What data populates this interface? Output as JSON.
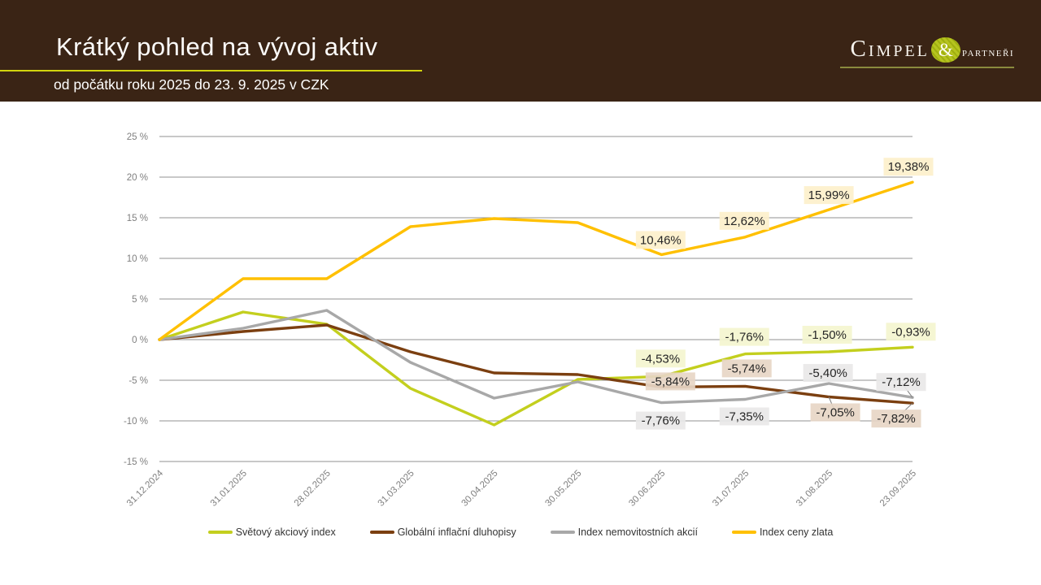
{
  "header": {
    "title": "Krátký pohled na vývoj aktiv",
    "subtitle": "od počátku roku 2025 do 23. 9. 2025 v CZK",
    "background_color": "#3A2415",
    "title_underline_color": "#D2D40E",
    "logo": {
      "name": "Cimpel",
      "ampersand": "&",
      "suffix": "partneři"
    }
  },
  "chart_data": {
    "type": "line",
    "title": "",
    "xlabel": "",
    "ylabel": "",
    "ylim": [
      -15,
      25
    ],
    "grid": "horizontal",
    "legend_position": "bottom",
    "grid_color": "#909090",
    "axis_text_color": "#7F7F7F",
    "label_text_color": "#262626",
    "label_start_index": 6,
    "categories": [
      "31.12.2024",
      "31.01.2025",
      "28.02.2025",
      "31.03.2025",
      "30.04.2025",
      "30.05.2025",
      "30.06.2025",
      "31.07.2025",
      "31.08.2025",
      "23.09.2025"
    ],
    "y_ticks": [
      "25 %",
      "20 %",
      "15 %",
      "10 %",
      "5 %",
      "0 %",
      "-5 %",
      "-10 %",
      "-15 %"
    ],
    "y_tick_values": [
      25,
      20,
      15,
      10,
      5,
      0,
      -5,
      -10,
      -15
    ],
    "series": [
      {
        "name": "Světový akciový index",
        "color": "#C3CF1E",
        "label_bg": "#F4F5CF",
        "values": [
          0,
          3.4,
          1.9,
          -6.0,
          -10.5,
          -4.9,
          -4.53,
          -1.76,
          -1.5,
          -0.93
        ],
        "labels": [
          "-4,53%",
          "-1,76%",
          "-1,50%",
          "-0,93%"
        ]
      },
      {
        "name": "Globální inflační dluhopisy",
        "color": "#7B3F10",
        "label_bg": "#E7D6C5",
        "values": [
          0,
          1.0,
          1.8,
          -1.5,
          -4.1,
          -4.3,
          -5.84,
          -5.74,
          -7.05,
          -7.82
        ],
        "labels": [
          "-5,84%",
          "-5,74%",
          "-7,05%",
          "-7,82%"
        ]
      },
      {
        "name": "Index nemovitostních akcií",
        "color": "#A8A8A8",
        "label_bg": "#E9E8E8",
        "values": [
          0,
          1.4,
          3.6,
          -2.8,
          -7.2,
          -5.2,
          -7.76,
          -7.35,
          -5.4,
          -7.12
        ],
        "labels": [
          "-7,76%",
          "-7,35%",
          "-5,40%",
          "-7,12%"
        ]
      },
      {
        "name": "Index ceny zlata",
        "color": "#FFC000",
        "label_bg": "#FDF0CB",
        "values": [
          0,
          7.5,
          7.5,
          13.9,
          14.9,
          14.4,
          10.46,
          12.62,
          15.99,
          19.38
        ],
        "labels": [
          "10,46%",
          "12,62%",
          "15,99%",
          "19,38%"
        ]
      }
    ]
  }
}
